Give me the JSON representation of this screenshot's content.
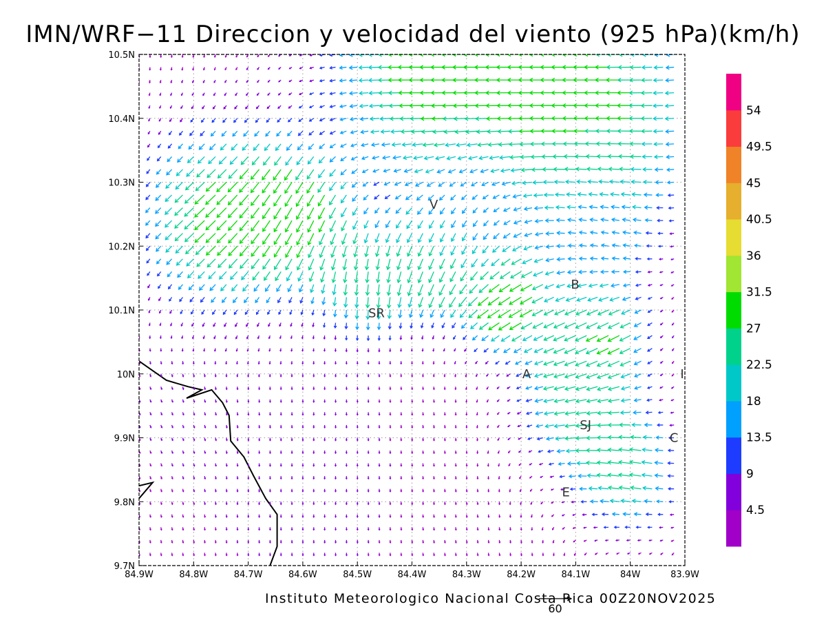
{
  "title": "IMN/WRF−11 Direccion y velocidad del viento (925 hPa)(km/h)",
  "footer": "Instituto Meteorologico Nacional Costa Rica 00Z20NOV2025",
  "reference_vector": {
    "value": 60,
    "label": "60"
  },
  "map": {
    "lon_range": [
      -84.9,
      -83.9
    ],
    "lat_range": [
      9.7,
      10.5
    ],
    "lon_ticks": [
      {
        "value": -84.9,
        "label": "84.9W"
      },
      {
        "value": -84.8,
        "label": "84.8W"
      },
      {
        "value": -84.7,
        "label": "84.7W"
      },
      {
        "value": -84.6,
        "label": "84.6W"
      },
      {
        "value": -84.5,
        "label": "84.5W"
      },
      {
        "value": -84.4,
        "label": "84.4W"
      },
      {
        "value": -84.3,
        "label": "84.3W"
      },
      {
        "value": -84.2,
        "label": "84.2W"
      },
      {
        "value": -84.1,
        "label": "84.1W"
      },
      {
        "value": -84.0,
        "label": "84W"
      },
      {
        "value": -83.9,
        "label": "83.9W"
      }
    ],
    "lat_ticks": [
      {
        "value": 9.7,
        "label": "9.7N"
      },
      {
        "value": 9.8,
        "label": "9.8N"
      },
      {
        "value": 9.9,
        "label": "9.9N"
      },
      {
        "value": 10.0,
        "label": "10N"
      },
      {
        "value": 10.1,
        "label": "10.1N"
      },
      {
        "value": 10.2,
        "label": "10.2N"
      },
      {
        "value": 10.3,
        "label": "10.3N"
      },
      {
        "value": 10.4,
        "label": "10.4N"
      },
      {
        "value": 10.5,
        "label": "10.5N"
      }
    ],
    "places": [
      {
        "label": "V",
        "lon": -84.36,
        "lat": 10.265
      },
      {
        "label": "B",
        "lon": -84.101,
        "lat": 10.14
      },
      {
        "label": "SR",
        "lon": -84.465,
        "lat": 10.095
      },
      {
        "label": "A",
        "lon": -84.19,
        "lat": 10.0
      },
      {
        "label": "I",
        "lon": -83.905,
        "lat": 10.0
      },
      {
        "label": "SJ",
        "lon": -84.082,
        "lat": 9.92
      },
      {
        "label": "C",
        "lon": -83.92,
        "lat": 9.9
      },
      {
        "label": "E",
        "lon": -84.118,
        "lat": 9.815
      }
    ],
    "coastline": [
      [
        [
          -84.9,
          10.02
        ],
        [
          -84.85,
          9.99
        ],
        [
          -84.81,
          9.98
        ],
        [
          -84.785,
          9.975
        ],
        [
          -84.813,
          9.962
        ],
        [
          -84.767,
          9.975
        ],
        [
          -84.747,
          9.955
        ],
        [
          -84.735,
          9.935
        ],
        [
          -84.732,
          9.895
        ],
        [
          -84.708,
          9.87
        ],
        [
          -84.69,
          9.84
        ],
        [
          -84.668,
          9.805
        ],
        [
          -84.647,
          9.78
        ],
        [
          -84.647,
          9.73
        ],
        [
          -84.66,
          9.7
        ]
      ],
      [
        [
          -84.9,
          9.825
        ],
        [
          -84.875,
          9.83
        ],
        [
          -84.9,
          9.805
        ]
      ]
    ],
    "colors": {
      "frame": "#000000",
      "grid": "#9a9a9a",
      "coast": "#000000"
    }
  },
  "colorbar": {
    "colors": [
      "#a000c8",
      "#8200dc",
      "#1e3cff",
      "#00a0ff",
      "#00c8c8",
      "#00d28c",
      "#00dc00",
      "#a0e632",
      "#e6dc32",
      "#e6af2d",
      "#f08228",
      "#fa3c3c",
      "#f00082"
    ],
    "labels": [
      "4.5",
      "9",
      "13.5",
      "18",
      "22.5",
      "27",
      "31.5",
      "36",
      "40.5",
      "45",
      "49.5",
      "54"
    ]
  },
  "wind_field": {
    "units": "km/h",
    "grid_lon_start": -84.9,
    "grid_lon_step": 0.02,
    "grid_lon_count": 50,
    "grid_lat_start": 9.72,
    "grid_lat_step": 0.02,
    "grid_lat_count": 40,
    "regimes": [
      {
        "lon": -84.35,
        "lat": 10.48,
        "u": -30,
        "v": 0,
        "r": 0.2
      },
      {
        "lon": -84.05,
        "lat": 10.42,
        "u": -28,
        "v": 0,
        "r": 0.2
      },
      {
        "lon": -84.75,
        "lat": 10.25,
        "u": -22,
        "v": -20,
        "r": 0.14
      },
      {
        "lon": -84.6,
        "lat": 10.25,
        "u": -10,
        "v": -28,
        "r": 0.1
      },
      {
        "lon": -84.48,
        "lat": 10.15,
        "u": 0,
        "v": -25,
        "r": 0.08
      },
      {
        "lon": -84.3,
        "lat": 10.25,
        "u": 0,
        "v": -12,
        "r": 0.1
      },
      {
        "lon": -84.35,
        "lat": 10.18,
        "u": -12,
        "v": -30,
        "r": 0.08
      },
      {
        "lon": -84.22,
        "lat": 10.12,
        "u": -28,
        "v": -18,
        "r": 0.08
      },
      {
        "lon": -84.05,
        "lat": 10.22,
        "u": -10,
        "v": 4,
        "r": 0.1
      },
      {
        "lon": -84.05,
        "lat": 10.06,
        "u": -26,
        "v": -16,
        "r": 0.08
      },
      {
        "lon": -84.1,
        "lat": 9.96,
        "u": -22,
        "v": -4,
        "r": 0.1
      },
      {
        "lon": -84.0,
        "lat": 9.85,
        "u": -25,
        "v": 4,
        "r": 0.1
      },
      {
        "lon": -84.6,
        "lat": 9.85,
        "u": 0,
        "v": -6,
        "r": 0.2
      },
      {
        "lon": -84.85,
        "lat": 9.95,
        "u": 2,
        "v": -4,
        "r": 0.15
      }
    ]
  }
}
